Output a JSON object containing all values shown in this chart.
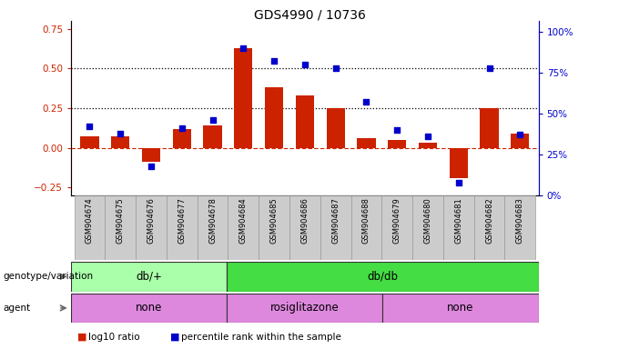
{
  "title": "GDS4990 / 10736",
  "samples": [
    "GSM904674",
    "GSM904675",
    "GSM904676",
    "GSM904677",
    "GSM904678",
    "GSM904684",
    "GSM904685",
    "GSM904686",
    "GSM904687",
    "GSM904688",
    "GSM904679",
    "GSM904680",
    "GSM904681",
    "GSM904682",
    "GSM904683"
  ],
  "log10_ratio": [
    0.07,
    0.07,
    -0.09,
    0.12,
    0.14,
    0.63,
    0.38,
    0.33,
    0.25,
    0.06,
    0.05,
    0.03,
    -0.19,
    0.25,
    0.09
  ],
  "percentile": [
    0.42,
    0.38,
    0.18,
    0.41,
    0.46,
    0.9,
    0.82,
    0.8,
    0.78,
    0.57,
    0.4,
    0.36,
    0.08,
    0.78,
    0.37
  ],
  "bar_color": "#cc2200",
  "dot_color": "#0000cc",
  "ylim_left": [
    -0.3,
    0.8
  ],
  "ylim_right": [
    0.0,
    1.0666
  ],
  "yticks_left": [
    -0.25,
    0.0,
    0.25,
    0.5,
    0.75
  ],
  "yticks_right": [
    0.0,
    0.25,
    0.5,
    0.75,
    1.0
  ],
  "ytick_labels_right": [
    "0%",
    "25%",
    "50%",
    "75%",
    "100%"
  ],
  "hlines": [
    0.25,
    0.5
  ],
  "hline_color": "black",
  "zero_line_color": "#cc2200",
  "genotype_groups": [
    {
      "label": "db/+",
      "start": 0,
      "end": 5,
      "color": "#aaffaa"
    },
    {
      "label": "db/db",
      "start": 5,
      "end": 15,
      "color": "#44dd44"
    }
  ],
  "agent_groups": [
    {
      "label": "none",
      "start": 0,
      "end": 5,
      "color": "#dd88dd"
    },
    {
      "label": "rosiglitazone",
      "start": 5,
      "end": 10,
      "color": "#dd88dd"
    },
    {
      "label": "none",
      "start": 10,
      "end": 15,
      "color": "#dd88dd"
    }
  ],
  "legend_bar_label": "log10 ratio",
  "legend_dot_label": "percentile rank within the sample",
  "bg_color": "#ffffff",
  "plot_bg": "#ffffff",
  "bar_width": 0.6
}
